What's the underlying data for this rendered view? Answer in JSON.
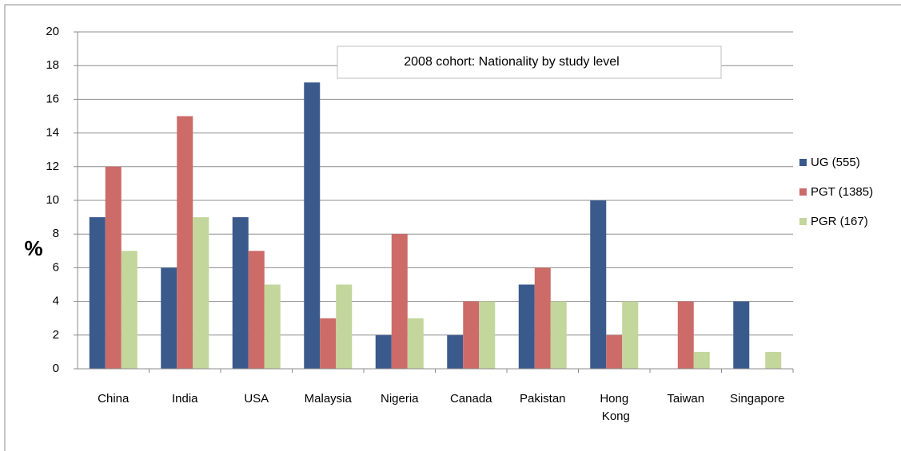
{
  "chart_data": {
    "type": "bar",
    "title": "2008 cohort: Nationality by study level",
    "y_label": "%",
    "categories": [
      "China",
      "India",
      "USA",
      "Malaysia",
      "Nigeria",
      "Canada",
      "Pakistan",
      "Hong Kong",
      "Taiwan",
      "Singapore"
    ],
    "series": [
      {
        "name": "UG (555)",
        "color": "#3b5a8c",
        "values": [
          9,
          6,
          9,
          17,
          2,
          2,
          5,
          10,
          0,
          4
        ]
      },
      {
        "name": "PGT (1385)",
        "color": "#cc6b68",
        "values": [
          12,
          15,
          7,
          3,
          8,
          4,
          6,
          2,
          4,
          0
        ]
      },
      {
        "name": "PGR (167)",
        "color": "#c3d69b",
        "values": [
          7,
          9,
          5,
          5,
          3,
          4,
          4,
          4,
          1,
          1
        ]
      }
    ],
    "ylim": [
      0,
      20
    ],
    "yticks": [
      0,
      2,
      4,
      6,
      8,
      10,
      12,
      14,
      16,
      18,
      20
    ],
    "grid": true,
    "legend": "right"
  }
}
